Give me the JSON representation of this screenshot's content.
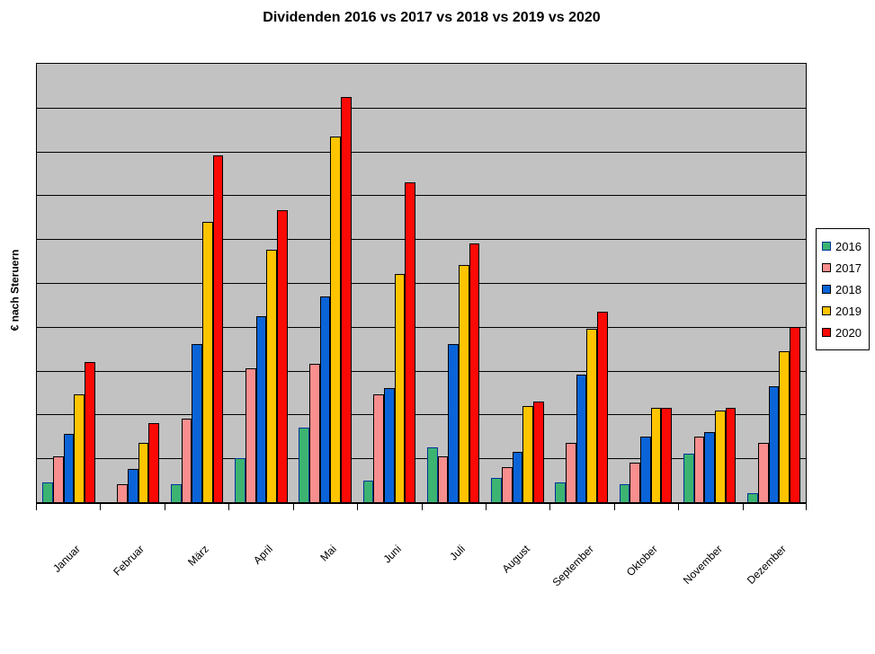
{
  "chart_data": {
    "type": "bar",
    "title": "Dividenden 2016 vs 2017 vs 2018 vs 2019 vs 2020",
    "ylabel": "€ nach Steruern",
    "xlabel": "",
    "categories": [
      "Januar",
      "Februar",
      "März",
      "April",
      "Mai",
      "Juni",
      "Juli",
      "August",
      "September",
      "Oktober",
      "November",
      "Dezember"
    ],
    "series": [
      {
        "name": "2016",
        "color": "#3CB371",
        "border": "#003399",
        "values": [
          0.45,
          0,
          0.4,
          1.0,
          1.7,
          0.5,
          1.25,
          0.55,
          0.45,
          0.4,
          1.1,
          0.2
        ]
      },
      {
        "name": "2017",
        "color": "#F98E8E",
        "border": "#000000",
        "values": [
          1.05,
          0.4,
          1.9,
          3.05,
          3.15,
          2.45,
          1.05,
          0.8,
          1.35,
          0.9,
          1.5,
          1.35
        ]
      },
      {
        "name": "2018",
        "color": "#0A64D8",
        "border": "#000000",
        "values": [
          1.55,
          0.75,
          3.6,
          4.25,
          4.7,
          2.6,
          3.6,
          1.15,
          2.9,
          1.5,
          1.6,
          2.65
        ]
      },
      {
        "name": "2019",
        "color": "#FFC400",
        "border": "#000000",
        "values": [
          2.45,
          1.35,
          6.4,
          5.75,
          8.35,
          5.2,
          5.4,
          2.2,
          3.95,
          2.15,
          2.1,
          3.45
        ]
      },
      {
        "name": "2020",
        "color": "#FB0905",
        "border": "#000000",
        "values": [
          3.2,
          1.8,
          7.9,
          6.65,
          9.25,
          7.3,
          5.9,
          2.3,
          4.35,
          2.15,
          2.15,
          4.0
        ]
      }
    ],
    "ylim": [
      0,
      10
    ],
    "y_divisions": 10,
    "y_tick_labels_visible": false,
    "units_note": "values estimated in gridline intervals; y axis shows no numeric labels",
    "grid": "horizontal",
    "legend_position": "right",
    "plot_background": "#C2C2C2",
    "x_label_rotation_deg": 45
  }
}
